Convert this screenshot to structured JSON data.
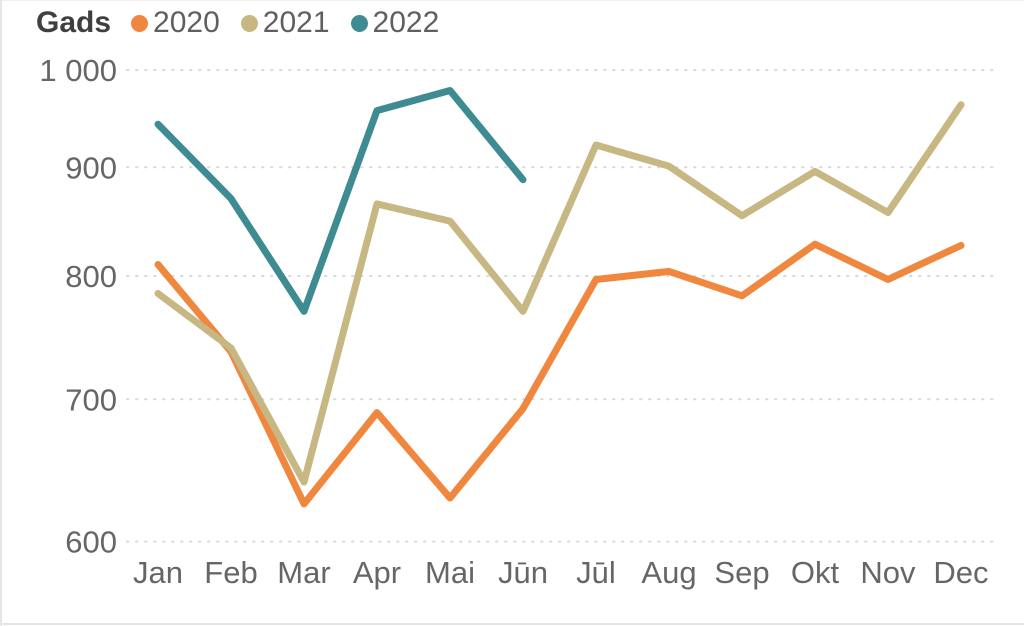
{
  "legend": {
    "title": "Gads",
    "items": [
      {
        "label": "2020",
        "color": "#F0873F"
      },
      {
        "label": "2021",
        "color": "#C7B782"
      },
      {
        "label": "2022",
        "color": "#3E8B91"
      }
    ]
  },
  "chart_data": {
    "type": "line",
    "title": "",
    "categories": [
      "Jan",
      "Feb",
      "Mar",
      "Apr",
      "Mai",
      "Jūn",
      "Jūl",
      "Aug",
      "Sep",
      "Okt",
      "Nov",
      "Dec"
    ],
    "series": [
      {
        "name": "2020",
        "color": "#F0873F",
        "values": [
          810,
          737,
          625,
          690,
          629,
          693,
          797,
          804,
          783,
          828,
          797,
          827
        ]
      },
      {
        "name": "2021",
        "color": "#C7B782",
        "values": [
          785,
          740,
          640,
          865,
          849,
          770,
          922,
          901,
          854,
          896,
          857,
          963
        ]
      },
      {
        "name": "2022",
        "color": "#3E8B91",
        "values": [
          943,
          870,
          770,
          957,
          978,
          888,
          null,
          null,
          null,
          null,
          null,
          null
        ]
      }
    ],
    "y_axis": {
      "ticks": [
        1000,
        900,
        800,
        700,
        600
      ],
      "tick_labels": [
        "1 000",
        "900",
        "800",
        "700",
        "600"
      ],
      "range": [
        600,
        1000
      ],
      "scale": "log"
    },
    "x_axis": {
      "label": ""
    },
    "grid": "dotted-horizontal",
    "legend_position": "top-left"
  },
  "styles": {
    "axis_text_color": "#666666",
    "gridline_color": "#D9D9D9",
    "background": "#FFFFFF"
  }
}
